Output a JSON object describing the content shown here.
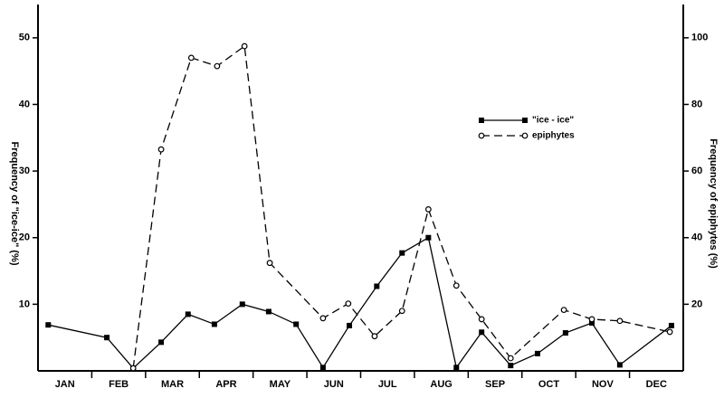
{
  "chart_data": {
    "type": "line",
    "y_label": "Frequency of \"ice-ice\" (%)",
    "y2_label": "Frequency of epiphytes (%)",
    "categories": [
      "JAN",
      "FEB",
      "MAR",
      "APR",
      "MAY",
      "JUN",
      "JUL",
      "AUG",
      "SEP",
      "OCT",
      "NOV",
      "DEC"
    ],
    "xlim": [
      0,
      12
    ],
    "xticks": [
      1,
      2,
      3,
      4,
      5,
      6,
      7,
      8,
      9,
      10,
      11
    ],
    "ylim": [
      0,
      55
    ],
    "yticks": [
      10,
      20,
      30,
      40,
      50
    ],
    "y2lim": [
      0,
      110
    ],
    "y2ticks": [
      20,
      40,
      60,
      80,
      100
    ],
    "legend": "upper right",
    "series": [
      {
        "name": "\"ice - ice\"",
        "color": "#000000",
        "marker": "square",
        "dash": false,
        "x": [
          0.19,
          1.28,
          1.77,
          2.29,
          2.79,
          3.28,
          3.8,
          4.29,
          4.8,
          5.3,
          5.79,
          6.3,
          6.77,
          7.26,
          7.78,
          8.25,
          8.79,
          9.29,
          9.81,
          10.3,
          10.82,
          11.78
        ],
        "values": [
          6.9,
          5.0,
          0.4,
          4.3,
          8.5,
          7.0,
          10.0,
          8.9,
          7.0,
          0.5,
          6.8,
          12.7,
          17.7,
          20.0,
          0.5,
          5.8,
          0.8,
          2.6,
          5.7,
          7.2,
          0.9,
          6.8
        ]
      },
      {
        "name": "epiphytes",
        "color": "#000000",
        "marker": "circle",
        "dash": true,
        "axis": "y2",
        "x": [
          1.77,
          2.29,
          2.85,
          3.33,
          3.84,
          4.31,
          5.3,
          5.77,
          6.26,
          6.77,
          7.26,
          7.78,
          8.25,
          8.79,
          9.78,
          10.3,
          10.82,
          11.75
        ],
        "values": [
          0.8,
          66.5,
          94,
          91.5,
          97.5,
          32.4,
          15.8,
          20.2,
          10.4,
          18,
          48.5,
          25.6,
          15.5,
          3.8,
          18.3,
          15.5,
          15,
          11.7
        ]
      }
    ]
  }
}
